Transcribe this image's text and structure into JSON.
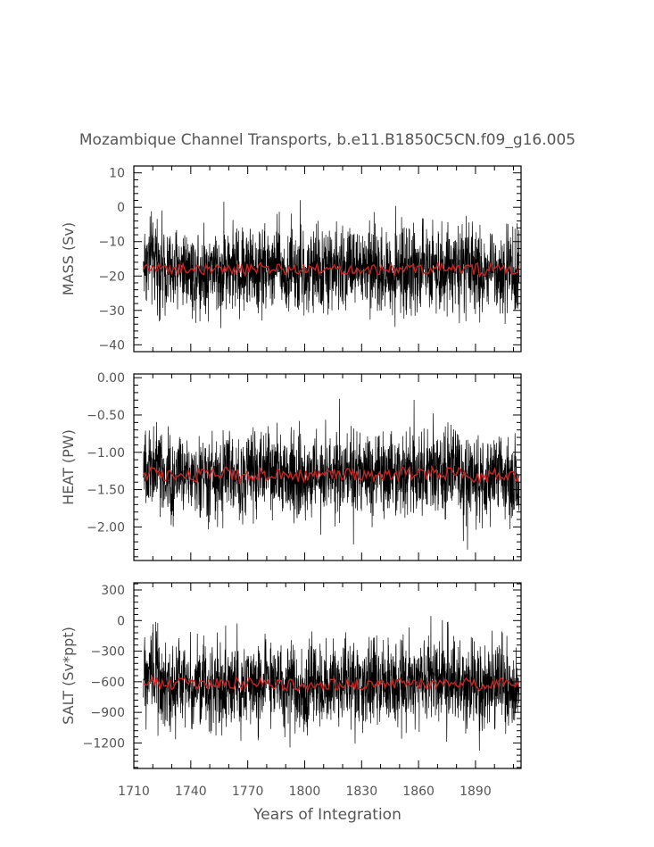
{
  "figure": {
    "title": "Mozambique Channel Transports, b.e11.B1850C5CN.f09_g16.005",
    "xlabel": "Years of Integration",
    "colors": {
      "raw": "#000000",
      "smoothed": "#cc2222",
      "axis": "#000000",
      "text": "#555555"
    }
  },
  "chart_data": [
    {
      "type": "line",
      "ylabel": "MASS (Sv)",
      "xlim": [
        1710,
        1914
      ],
      "ylim": [
        -42,
        12
      ],
      "yticks": [
        10,
        0,
        -10,
        -20,
        -30,
        -40
      ],
      "ytick_labels": [
        "10",
        "0",
        "−10",
        "−20",
        "−30",
        "−40"
      ],
      "minor_ystep": 2,
      "series": [
        {
          "role": "monthly",
          "color": "#000000",
          "mean": -18,
          "amplitude": 9.5,
          "min_clip": -41.5,
          "max_clip": 10.5
        },
        {
          "role": "annual mean",
          "color": "#cc2222",
          "mean": -18,
          "amplitude": 1.6
        }
      ],
      "grid": false
    },
    {
      "type": "line",
      "ylabel": "HEAT (PW)",
      "xlim": [
        1710,
        1914
      ],
      "ylim": [
        -2.45,
        0.05
      ],
      "yticks": [
        0.0,
        -0.5,
        -1.0,
        -1.5,
        -2.0
      ],
      "ytick_labels": [
        "0.00",
        "−0.50",
        "−1.00",
        "−1.50",
        "−2.00"
      ],
      "minor_ystep": 0.1,
      "series": [
        {
          "role": "monthly",
          "color": "#000000",
          "mean": -1.3,
          "amplitude": 0.42,
          "min_clip": -2.4,
          "max_clip": -0.05
        },
        {
          "role": "annual mean",
          "color": "#cc2222",
          "mean": -1.3,
          "amplitude": 0.09
        }
      ],
      "grid": false
    },
    {
      "type": "line",
      "ylabel": "SALT (Sv*ppt)",
      "xlim": [
        1710,
        1914
      ],
      "ylim": [
        -1450,
        370
      ],
      "yticks": [
        300,
        0,
        -300,
        -600,
        -900,
        -1200
      ],
      "ytick_labels": [
        "300",
        "0",
        "−300",
        "−600",
        "−900",
        "−1200"
      ],
      "minor_ystep": 60,
      "series": [
        {
          "role": "monthly",
          "color": "#000000",
          "mean": -620,
          "amplitude": 320,
          "min_clip": -1430,
          "max_clip": 350
        },
        {
          "role": "annual mean",
          "color": "#cc2222",
          "mean": -620,
          "amplitude": 55
        }
      ],
      "grid": false
    }
  ],
  "xaxis": {
    "xticks": [
      1710,
      1740,
      1770,
      1800,
      1830,
      1860,
      1890
    ],
    "xtick_labels": [
      "1710",
      "1740",
      "1770",
      "1800",
      "1830",
      "1860",
      "1890"
    ],
    "minor_xstep": 10
  }
}
